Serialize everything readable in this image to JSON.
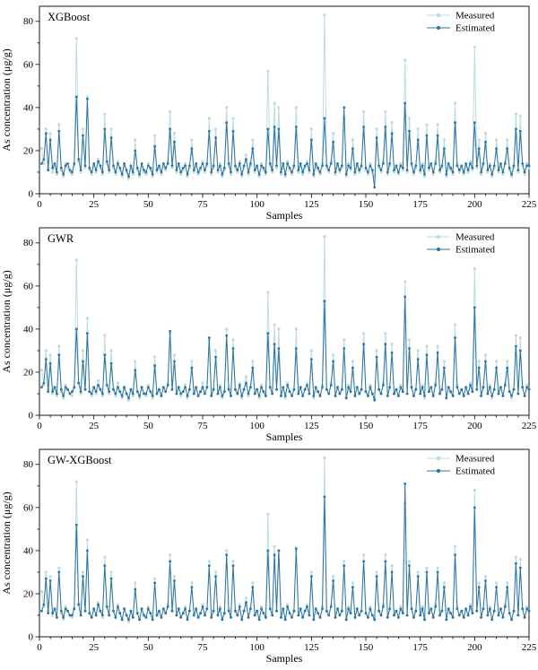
{
  "colors": {
    "measured": "#bfdbde",
    "estimated": "#2b74a3",
    "axis": "#000000"
  },
  "shared": {
    "measured": [
      21,
      14,
      30,
      12,
      28,
      10,
      13,
      9,
      32,
      11,
      8,
      14,
      12,
      10,
      9,
      13,
      72,
      15,
      10,
      30,
      12,
      45,
      11,
      9,
      13,
      10,
      16,
      12,
      9,
      37,
      14,
      10,
      30,
      12,
      9,
      15,
      11,
      8,
      13,
      10,
      7,
      12,
      9,
      25,
      11,
      8,
      13,
      10,
      9,
      14,
      11,
      8,
      27,
      10,
      12,
      9,
      13,
      11,
      15,
      38,
      12,
      28,
      10,
      13,
      9,
      11,
      14,
      8,
      12,
      25,
      10,
      13,
      9,
      11,
      15,
      10,
      13,
      35,
      9,
      12,
      30,
      10,
      14,
      8,
      11,
      40,
      13,
      9,
      35,
      12,
      10,
      15,
      8,
      12,
      18,
      9,
      13,
      25,
      10,
      12,
      8,
      14,
      11,
      9,
      57,
      13,
      10,
      42,
      12,
      40,
      9,
      13,
      8,
      15,
      11,
      9,
      12,
      40,
      10,
      13,
      9,
      12,
      15,
      10,
      30,
      8,
      13,
      11,
      9,
      14,
      83,
      12,
      10,
      15,
      28,
      9,
      13,
      10,
      12,
      35,
      8,
      14,
      11,
      25,
      9,
      13,
      10,
      12,
      38,
      11,
      9,
      14,
      10,
      8,
      30,
      12,
      10,
      15,
      38,
      9,
      13,
      33,
      10,
      12,
      9,
      14,
      11,
      62,
      10,
      35,
      13,
      9,
      12,
      30,
      10,
      14,
      8,
      32,
      11,
      13,
      9,
      15,
      32,
      10,
      12,
      25,
      8,
      13,
      11,
      9,
      42,
      14,
      10,
      12,
      9,
      13,
      10,
      15,
      11,
      68,
      12,
      25,
      9,
      13,
      28,
      10,
      14,
      8,
      12,
      25,
      10,
      13,
      9,
      15,
      25,
      11,
      8,
      12,
      37,
      10,
      36,
      13,
      9,
      14,
      12
    ]
  },
  "chart_data": [
    {
      "type": "line",
      "title": "XGBoost",
      "xlabel": "Samples",
      "ylabel": "As concentration (μg/g)",
      "xlim": [
        0,
        225
      ],
      "ylim": [
        0,
        87
      ],
      "xticks": [
        0,
        25,
        50,
        75,
        100,
        125,
        150,
        175,
        200,
        225
      ],
      "yticks": [
        0,
        20,
        40,
        60,
        80
      ],
      "grid": false,
      "legend_position": "top-right",
      "series": [
        {
          "name": "Measured",
          "color_key": "measured",
          "line_width": 1,
          "marker_r": 1.6,
          "values_ref": "measured"
        },
        {
          "name": "Estimated",
          "color_key": "estimated",
          "line_width": 1,
          "marker_r": 1.4,
          "values": [
            14,
            16,
            28,
            11,
            25,
            12,
            14,
            10,
            29,
            12,
            9,
            13,
            14,
            11,
            10,
            14,
            45,
            16,
            11,
            27,
            13,
            44,
            12,
            10,
            14,
            11,
            15,
            13,
            10,
            30,
            15,
            11,
            26,
            13,
            10,
            14,
            12,
            9,
            14,
            11,
            8,
            13,
            10,
            20,
            12,
            9,
            14,
            11,
            10,
            13,
            12,
            9,
            22,
            11,
            13,
            10,
            14,
            12,
            14,
            30,
            13,
            24,
            11,
            14,
            10,
            12,
            13,
            9,
            13,
            21,
            11,
            14,
            10,
            12,
            14,
            11,
            14,
            29,
            10,
            13,
            26,
            11,
            13,
            9,
            12,
            33,
            14,
            10,
            29,
            13,
            11,
            14,
            9,
            13,
            16,
            10,
            14,
            21,
            11,
            13,
            9,
            13,
            12,
            10,
            30,
            14,
            11,
            31,
            13,
            30,
            10,
            14,
            9,
            14,
            12,
            10,
            13,
            31,
            11,
            14,
            10,
            13,
            14,
            11,
            25,
            9,
            14,
            12,
            10,
            13,
            35,
            13,
            11,
            14,
            24,
            10,
            14,
            11,
            13,
            40,
            9,
            13,
            12,
            21,
            10,
            14,
            11,
            13,
            31,
            12,
            10,
            13,
            11,
            3,
            26,
            13,
            11,
            14,
            31,
            10,
            14,
            28,
            11,
            13,
            10,
            13,
            12,
            42,
            11,
            29,
            14,
            10,
            13,
            25,
            11,
            13,
            9,
            27,
            12,
            14,
            10,
            14,
            27,
            11,
            13,
            21,
            9,
            14,
            12,
            10,
            33,
            13,
            11,
            13,
            10,
            14,
            11,
            14,
            12,
            33,
            13,
            21,
            10,
            14,
            24,
            11,
            13,
            9,
            13,
            21,
            11,
            14,
            10,
            14,
            21,
            12,
            9,
            13,
            30,
            11,
            29,
            14,
            10,
            13,
            13
          ]
        }
      ]
    },
    {
      "type": "line",
      "title": "GWR",
      "xlabel": "Samples",
      "ylabel": "As concentration (μg/g)",
      "xlim": [
        0,
        225
      ],
      "ylim": [
        0,
        87
      ],
      "xticks": [
        0,
        25,
        50,
        75,
        100,
        125,
        150,
        175,
        200,
        225
      ],
      "yticks": [
        0,
        20,
        40,
        60,
        80
      ],
      "grid": false,
      "legend_position": "top-right",
      "series": [
        {
          "name": "Measured",
          "color_key": "measured",
          "line_width": 1,
          "marker_r": 1.6,
          "values_ref": "measured"
        },
        {
          "name": "Estimated",
          "color_key": "estimated",
          "line_width": 1,
          "marker_r": 1.4,
          "values": [
            13,
            15,
            26,
            11,
            24,
            11,
            13,
            10,
            28,
            12,
            9,
            13,
            12,
            10,
            11,
            13,
            40,
            15,
            11,
            25,
            12,
            38,
            11,
            10,
            13,
            11,
            14,
            12,
            10,
            28,
            14,
            11,
            24,
            12,
            10,
            13,
            11,
            9,
            13,
            10,
            8,
            12,
            10,
            21,
            11,
            9,
            13,
            10,
            10,
            13,
            11,
            9,
            23,
            10,
            12,
            9,
            13,
            11,
            14,
            39,
            12,
            25,
            10,
            13,
            10,
            11,
            13,
            9,
            12,
            22,
            10,
            13,
            9,
            11,
            13,
            10,
            13,
            36,
            9,
            12,
            27,
            10,
            13,
            9,
            11,
            37,
            12,
            9,
            31,
            12,
            10,
            14,
            9,
            12,
            15,
            10,
            13,
            22,
            10,
            12,
            9,
            13,
            11,
            9,
            38,
            13,
            10,
            33,
            12,
            31,
            9,
            13,
            9,
            14,
            11,
            9,
            12,
            31,
            10,
            13,
            9,
            12,
            14,
            10,
            26,
            9,
            13,
            11,
            9,
            13,
            53,
            12,
            10,
            14,
            25,
            9,
            13,
            10,
            12,
            31,
            8,
            13,
            11,
            22,
            9,
            13,
            10,
            12,
            33,
            11,
            9,
            13,
            10,
            7,
            27,
            12,
            10,
            14,
            33,
            9,
            13,
            29,
            10,
            12,
            9,
            13,
            11,
            55,
            10,
            31,
            13,
            9,
            12,
            26,
            10,
            13,
            9,
            28,
            11,
            13,
            9,
            14,
            29,
            10,
            12,
            22,
            8,
            13,
            11,
            9,
            36,
            13,
            10,
            12,
            9,
            13,
            10,
            14,
            11,
            50,
            12,
            22,
            9,
            13,
            25,
            10,
            13,
            9,
            12,
            22,
            10,
            13,
            9,
            14,
            22,
            11,
            9,
            12,
            32,
            10,
            30,
            13,
            9,
            13,
            12
          ]
        }
      ]
    },
    {
      "type": "line",
      "title": "GW-XGBoost",
      "xlabel": "Samples",
      "ylabel": "As concentration (μg/g)",
      "xlim": [
        0,
        225
      ],
      "ylim": [
        0,
        87
      ],
      "xticks": [
        0,
        25,
        50,
        75,
        100,
        125,
        150,
        175,
        200,
        225
      ],
      "yticks": [
        0,
        20,
        40,
        60,
        80
      ],
      "grid": false,
      "legend_position": "top-right",
      "series": [
        {
          "name": "Measured",
          "color_key": "measured",
          "line_width": 1,
          "marker_r": 1.6,
          "values_ref": "measured"
        },
        {
          "name": "Estimated",
          "color_key": "estimated",
          "line_width": 1,
          "marker_r": 1.4,
          "values": [
            12,
            15,
            27,
            11,
            26,
            11,
            13,
            9,
            30,
            12,
            9,
            13,
            12,
            10,
            10,
            13,
            52,
            15,
            10,
            28,
            12,
            40,
            11,
            9,
            13,
            10,
            15,
            12,
            10,
            33,
            14,
            10,
            27,
            12,
            9,
            14,
            11,
            8,
            13,
            10,
            8,
            12,
            9,
            22,
            11,
            8,
            13,
            10,
            9,
            13,
            11,
            8,
            25,
            10,
            12,
            9,
            13,
            11,
            14,
            35,
            12,
            26,
            10,
            13,
            9,
            11,
            13,
            8,
            12,
            23,
            10,
            13,
            9,
            11,
            14,
            10,
            13,
            33,
            9,
            12,
            28,
            10,
            13,
            8,
            11,
            38,
            12,
            9,
            33,
            12,
            10,
            14,
            8,
            12,
            16,
            9,
            13,
            23,
            10,
            12,
            8,
            13,
            11,
            9,
            40,
            13,
            10,
            38,
            12,
            40,
            9,
            13,
            8,
            14,
            11,
            9,
            12,
            41,
            10,
            13,
            9,
            12,
            14,
            10,
            28,
            8,
            13,
            11,
            9,
            13,
            65,
            12,
            10,
            14,
            26,
            9,
            13,
            10,
            12,
            33,
            8,
            13,
            11,
            23,
            9,
            13,
            10,
            12,
            35,
            11,
            9,
            13,
            10,
            8,
            28,
            12,
            10,
            14,
            35,
            9,
            13,
            30,
            10,
            12,
            9,
            13,
            11,
            71,
            10,
            33,
            13,
            9,
            12,
            28,
            10,
            13,
            8,
            30,
            11,
            13,
            9,
            14,
            30,
            10,
            12,
            23,
            8,
            13,
            11,
            9,
            38,
            13,
            10,
            12,
            9,
            13,
            10,
            14,
            11,
            60,
            12,
            23,
            9,
            13,
            26,
            10,
            13,
            8,
            12,
            23,
            10,
            13,
            9,
            14,
            23,
            11,
            8,
            12,
            34,
            10,
            32,
            13,
            9,
            13,
            12
          ]
        }
      ]
    }
  ]
}
